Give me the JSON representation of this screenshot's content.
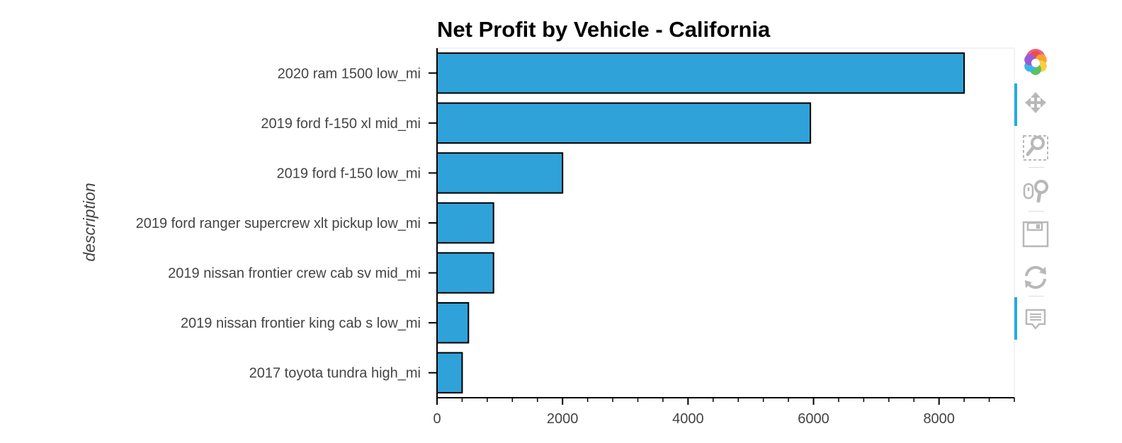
{
  "chart_data": {
    "type": "bar",
    "orientation": "horizontal",
    "title": "Net Profit by Vehicle - California",
    "ylabel": "description",
    "xlabel": "",
    "categories": [
      "2020 ram 1500 low_mi",
      "2019 ford f-150 xl mid_mi",
      "2019 ford f-150 low_mi",
      "2019 ford ranger supercrew xlt pickup low_mi",
      "2019 nissan frontier crew cab sv mid_mi",
      "2019 nissan frontier king cab s low_mi",
      "2017 toyota tundra high_mi"
    ],
    "values": [
      8400,
      5950,
      2000,
      900,
      900,
      500,
      400
    ],
    "xlim": [
      0,
      9200
    ],
    "xticks": [
      0,
      2000,
      4000,
      6000,
      8000
    ],
    "minor_tick_step": 400,
    "bar_color": "#30a2da",
    "bar_outline": "#000000",
    "grid": false
  },
  "toolbar": {
    "items": [
      {
        "name": "bokeh-logo-icon",
        "active": false
      },
      {
        "name": "pan-tool-icon",
        "active": true
      },
      {
        "name": "box-zoom-tool-icon",
        "active": false
      },
      {
        "name": "wheel-zoom-tool-icon",
        "active": false
      },
      {
        "name": "save-tool-icon",
        "active": false
      },
      {
        "name": "reset-tool-icon",
        "active": false
      },
      {
        "name": "hover-tool-icon",
        "active": true
      }
    ]
  }
}
